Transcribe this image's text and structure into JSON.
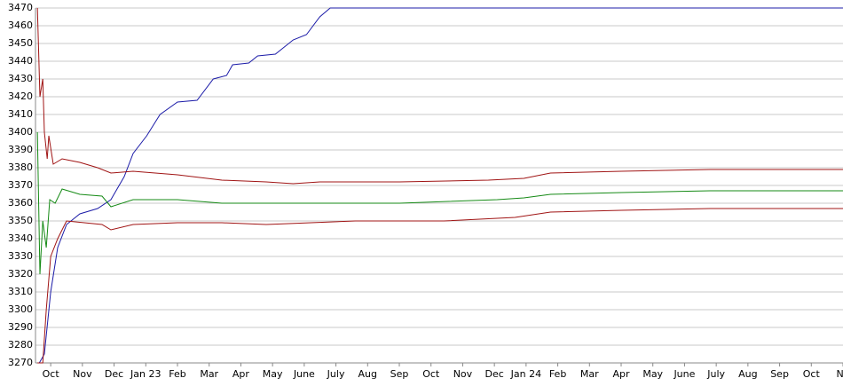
{
  "chart_data": {
    "type": "line",
    "xlim": [
      -0.48,
      25
    ],
    "ylim": [
      3270,
      3470
    ],
    "yticks": [
      3270,
      3280,
      3290,
      3300,
      3310,
      3320,
      3330,
      3340,
      3350,
      3360,
      3370,
      3380,
      3390,
      3400,
      3410,
      3420,
      3430,
      3440,
      3450,
      3460,
      3470
    ],
    "xticks": [
      {
        "value": 0,
        "label": "Oct"
      },
      {
        "value": 1,
        "label": "Nov"
      },
      {
        "value": 2,
        "label": "Dec"
      },
      {
        "value": 3,
        "label": "Jan 23"
      },
      {
        "value": 4,
        "label": "Feb"
      },
      {
        "value": 5,
        "label": "Mar"
      },
      {
        "value": 6,
        "label": "Apr"
      },
      {
        "value": 7,
        "label": "May"
      },
      {
        "value": 8,
        "label": "June"
      },
      {
        "value": 9,
        "label": "July"
      },
      {
        "value": 10,
        "label": "Aug"
      },
      {
        "value": 11,
        "label": "Sep"
      },
      {
        "value": 12,
        "label": "Oct"
      },
      {
        "value": 13,
        "label": "Nov"
      },
      {
        "value": 14,
        "label": "Dec"
      },
      {
        "value": 15,
        "label": "Jan 24"
      },
      {
        "value": 16,
        "label": "Feb"
      },
      {
        "value": 17,
        "label": "Mar"
      },
      {
        "value": 18,
        "label": "Apr"
      },
      {
        "value": 19,
        "label": "May"
      },
      {
        "value": 20,
        "label": "June"
      },
      {
        "value": 21,
        "label": "July"
      },
      {
        "value": 22,
        "label": "Aug"
      },
      {
        "value": 23,
        "label": "Sep"
      },
      {
        "value": 24,
        "label": "Oct"
      },
      {
        "value": 25,
        "label": "No"
      }
    ],
    "grid": true,
    "series": [
      {
        "color": "#1c1ca8",
        "x": [
          -0.36,
          -0.2,
          0,
          0.22,
          0.5,
          0.92,
          1.48,
          1.9,
          2.32,
          2.6,
          3.03,
          3.45,
          4.0,
          4.62,
          5.13,
          5.55,
          5.74,
          6.25,
          6.53,
          7.09,
          7.65,
          8.07,
          8.49,
          8.82,
          25
        ],
        "values": [
          3270,
          3275,
          3310,
          3335,
          3348,
          3354,
          3357,
          3362,
          3375,
          3388,
          3398,
          3410,
          3417,
          3418,
          3430,
          3432,
          3438,
          3439,
          3443,
          3444,
          3452,
          3455,
          3465,
          3470,
          3470
        ]
      },
      {
        "color": "#a01414",
        "x": [
          -0.42,
          -0.34,
          -0.25,
          -0.2,
          -0.11,
          -0.06,
          0.08,
          0.36,
          0.92,
          1.48,
          1.9,
          2.6,
          4.0,
          5.4,
          6.8,
          7.65,
          8.49,
          11.01,
          13.81,
          14.93,
          15.77,
          18.01,
          20.81,
          25
        ],
        "values": [
          3470,
          3420,
          3430,
          3400,
          3385,
          3398,
          3382,
          3385,
          3383,
          3380,
          3377,
          3378,
          3376,
          3373,
          3372,
          3371,
          3372,
          3372,
          3373,
          3374,
          3377,
          3378,
          3379,
          3379
        ]
      },
      {
        "color": "#158a15",
        "x": [
          -0.42,
          -0.34,
          -0.25,
          -0.14,
          -0.03,
          0.14,
          0.36,
          0.92,
          1.62,
          1.9,
          2.6,
          4.0,
          5.4,
          8.21,
          11.01,
          14.09,
          14.93,
          15.77,
          18.01,
          20.81,
          25
        ],
        "values": [
          3400,
          3320,
          3350,
          3335,
          3362,
          3360,
          3368,
          3365,
          3364,
          3358,
          3362,
          3362,
          3360,
          3360,
          3360,
          3362,
          3363,
          3365,
          3366,
          3367,
          3367
        ]
      },
      {
        "color": "#a01414",
        "x": [
          -0.42,
          -0.25,
          -0.14,
          0,
          0.22,
          0.5,
          1.06,
          1.62,
          1.9,
          2.6,
          4.0,
          5.4,
          6.8,
          9.61,
          12.41,
          14.65,
          15.77,
          18.01,
          20.81,
          25
        ],
        "values": [
          3270,
          3270,
          3300,
          3330,
          3340,
          3350,
          3349,
          3348,
          3345,
          3348,
          3349,
          3349,
          3348,
          3350,
          3350,
          3352,
          3355,
          3356,
          3357,
          3357
        ]
      }
    ]
  }
}
